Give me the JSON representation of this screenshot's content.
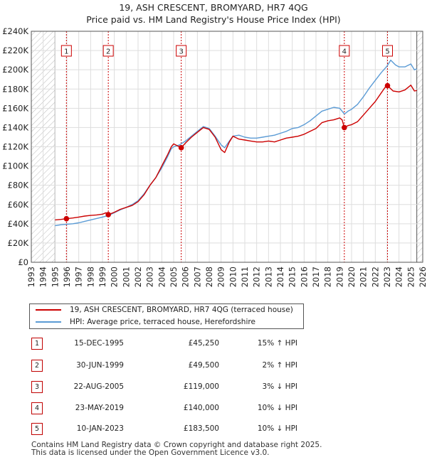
{
  "chart_data": {
    "type": "line",
    "title": "19, ASH CRESCENT, BROMYARD, HR7 4QG",
    "subtitle": "Price paid vs. HM Land Registry's House Price Index (HPI)",
    "xlim": [
      1993,
      2026
    ],
    "ylim": [
      0,
      240000
    ],
    "y_ticks": [
      0,
      20000,
      40000,
      60000,
      80000,
      100000,
      120000,
      140000,
      160000,
      180000,
      200000,
      220000,
      240000
    ],
    "y_tick_labels": [
      "£0",
      "£20K",
      "£40K",
      "£60K",
      "£80K",
      "£100K",
      "£120K",
      "£140K",
      "£160K",
      "£180K",
      "£200K",
      "£220K",
      "£240K"
    ],
    "x_tick_labels": [
      "1993",
      "1994",
      "1995",
      "1996",
      "1997",
      "1998",
      "1999",
      "2000",
      "2001",
      "2002",
      "2003",
      "2004",
      "2005",
      "2006",
      "2007",
      "2008",
      "2009",
      "2010",
      "2011",
      "2012",
      "2013",
      "2014",
      "2015",
      "2016",
      "2017",
      "2018",
      "2019",
      "2020",
      "2021",
      "2022",
      "2023",
      "2024",
      "2025",
      "2026"
    ],
    "data_start": 1995.0,
    "data_end": 2025.5,
    "grid": true,
    "series": [
      {
        "name": "19, ASH CRESCENT, BROMYARD, HR7 4QG (terraced house)",
        "color": "#cc0000",
        "points": [
          [
            1995.0,
            44000
          ],
          [
            1995.5,
            44500
          ],
          [
            1995.96,
            45250
          ],
          [
            1996.5,
            46000
          ],
          [
            1997,
            47000
          ],
          [
            1997.5,
            48000
          ],
          [
            1998,
            48700
          ],
          [
            1998.5,
            49200
          ],
          [
            1999,
            50000
          ],
          [
            1999.3,
            51500
          ],
          [
            1999.49,
            49500
          ],
          [
            2000,
            52000
          ],
          [
            2000.5,
            55000
          ],
          [
            2001,
            57000
          ],
          [
            2001.5,
            59000
          ],
          [
            2002,
            63000
          ],
          [
            2002.5,
            70000
          ],
          [
            2003,
            80000
          ],
          [
            2003.5,
            88000
          ],
          [
            2004,
            100000
          ],
          [
            2004.5,
            112000
          ],
          [
            2004.8,
            120000
          ],
          [
            2005,
            123000
          ],
          [
            2005.64,
            119000
          ],
          [
            2006,
            124000
          ],
          [
            2006.5,
            130000
          ],
          [
            2007,
            135000
          ],
          [
            2007.5,
            140000
          ],
          [
            2008,
            138000
          ],
          [
            2008.5,
            130000
          ],
          [
            2009,
            117000
          ],
          [
            2009.3,
            114000
          ],
          [
            2009.7,
            125000
          ],
          [
            2010,
            131000
          ],
          [
            2010.5,
            128000
          ],
          [
            2011,
            127000
          ],
          [
            2011.5,
            126000
          ],
          [
            2012,
            125000
          ],
          [
            2012.5,
            125000
          ],
          [
            2013,
            126000
          ],
          [
            2013.5,
            125000
          ],
          [
            2014,
            127000
          ],
          [
            2014.5,
            129000
          ],
          [
            2015,
            130000
          ],
          [
            2015.5,
            131000
          ],
          [
            2016,
            133000
          ],
          [
            2016.5,
            136000
          ],
          [
            2017,
            139000
          ],
          [
            2017.5,
            145000
          ],
          [
            2018,
            147000
          ],
          [
            2018.5,
            148000
          ],
          [
            2019,
            150000
          ],
          [
            2019.2,
            148000
          ],
          [
            2019.39,
            140000
          ],
          [
            2019.7,
            142000
          ],
          [
            2020,
            143000
          ],
          [
            2020.5,
            146000
          ],
          [
            2021,
            153000
          ],
          [
            2021.5,
            160000
          ],
          [
            2022,
            167000
          ],
          [
            2022.5,
            176000
          ],
          [
            2022.9,
            183000
          ],
          [
            2023.03,
            183500
          ],
          [
            2023.5,
            178000
          ],
          [
            2024,
            177000
          ],
          [
            2024.5,
            179000
          ],
          [
            2025,
            184000
          ],
          [
            2025.3,
            178000
          ],
          [
            2025.5,
            178500
          ]
        ]
      },
      {
        "name": "HPI: Average price, terraced house, Herefordshire",
        "color": "#5b9bd5",
        "points": [
          [
            1995.0,
            38000
          ],
          [
            1995.5,
            39000
          ],
          [
            1996,
            39500
          ],
          [
            1996.5,
            40000
          ],
          [
            1997,
            41000
          ],
          [
            1997.5,
            42500
          ],
          [
            1998,
            44000
          ],
          [
            1998.5,
            45500
          ],
          [
            1999,
            47000
          ],
          [
            1999.5,
            48500
          ],
          [
            2000,
            51500
          ],
          [
            2000.5,
            54500
          ],
          [
            2001,
            57000
          ],
          [
            2001.5,
            60000
          ],
          [
            2002,
            64000
          ],
          [
            2002.5,
            71000
          ],
          [
            2003,
            80000
          ],
          [
            2003.5,
            88000
          ],
          [
            2004,
            98000
          ],
          [
            2004.5,
            110000
          ],
          [
            2004.8,
            118000
          ],
          [
            2005,
            120000
          ],
          [
            2005.5,
            122000
          ],
          [
            2006,
            126000
          ],
          [
            2006.5,
            131000
          ],
          [
            2007,
            136000
          ],
          [
            2007.5,
            141000
          ],
          [
            2008,
            139000
          ],
          [
            2008.5,
            131000
          ],
          [
            2009,
            122000
          ],
          [
            2009.3,
            119000
          ],
          [
            2009.7,
            126000
          ],
          [
            2010,
            131000
          ],
          [
            2010.5,
            132000
          ],
          [
            2011,
            130000
          ],
          [
            2011.5,
            129000
          ],
          [
            2012,
            129000
          ],
          [
            2012.5,
            130000
          ],
          [
            2013,
            131000
          ],
          [
            2013.5,
            132000
          ],
          [
            2014,
            134000
          ],
          [
            2014.5,
            136000
          ],
          [
            2015,
            139000
          ],
          [
            2015.5,
            140000
          ],
          [
            2016,
            143000
          ],
          [
            2016.5,
            147000
          ],
          [
            2017,
            152000
          ],
          [
            2017.5,
            157000
          ],
          [
            2018,
            159000
          ],
          [
            2018.5,
            161000
          ],
          [
            2019,
            160000
          ],
          [
            2019.4,
            154000
          ],
          [
            2019.7,
            157000
          ],
          [
            2020,
            159000
          ],
          [
            2020.5,
            164000
          ],
          [
            2021,
            172000
          ],
          [
            2021.5,
            181000
          ],
          [
            2022,
            189000
          ],
          [
            2022.5,
            197000
          ],
          [
            2023,
            204000
          ],
          [
            2023.3,
            210000
          ],
          [
            2023.7,
            205000
          ],
          [
            2024,
            203000
          ],
          [
            2024.5,
            203000
          ],
          [
            2025,
            206000
          ],
          [
            2025.3,
            200000
          ],
          [
            2025.5,
            201000
          ]
        ]
      }
    ],
    "sales": [
      {
        "label": "1",
        "date": "15-DEC-1995",
        "year": 1995.96,
        "price": 45250,
        "price_text": "£45,250",
        "hpi_text": "15% ↑ HPI"
      },
      {
        "label": "2",
        "date": "30-JUN-1999",
        "year": 1999.49,
        "price": 49500,
        "price_text": "£49,500",
        "hpi_text": "2% ↑ HPI"
      },
      {
        "label": "3",
        "date": "22-AUG-2005",
        "year": 2005.64,
        "price": 119000,
        "price_text": "£119,000",
        "hpi_text": "3% ↓ HPI"
      },
      {
        "label": "4",
        "date": "23-MAY-2019",
        "year": 2019.39,
        "price": 140000,
        "price_text": "£140,000",
        "hpi_text": "10% ↓ HPI"
      },
      {
        "label": "5",
        "date": "10-JAN-2023",
        "year": 2023.03,
        "price": 183500,
        "price_text": "£183,500",
        "hpi_text": "10% ↓ HPI"
      }
    ],
    "colors": {
      "property": "#cc0000",
      "hpi": "#5b9bd5",
      "marker_line": "#cc0000",
      "hatch": "#bbbbbb",
      "grid": "#dddddd"
    }
  },
  "legend": {
    "property_label": "19, ASH CRESCENT, BROMYARD, HR7 4QG (terraced house)",
    "hpi_label": "HPI: Average price, terraced house, Herefordshire"
  },
  "footer": {
    "line1": "Contains HM Land Registry data © Crown copyright and database right 2025.",
    "line2": "This data is licensed under the Open Government Licence v3.0."
  }
}
